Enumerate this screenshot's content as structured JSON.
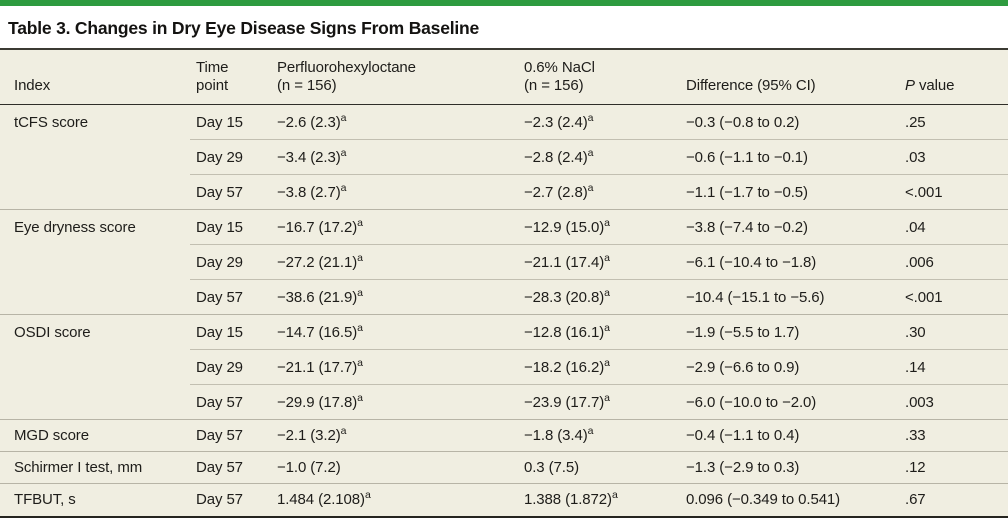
{
  "accent_color": "#2e9b3f",
  "background_beige": "#f0eee1",
  "title": "Table 3. Changes in Dry Eye Disease Signs From Baseline",
  "columns": {
    "index": "Index",
    "time_l1": "Time",
    "time_l2": "point",
    "pfh_l1": "Perfluorohexyloctane",
    "pfh_l2": "(n = 156)",
    "nacl_l1": "0.6% NaCl",
    "nacl_l2": "(n = 156)",
    "diff": "Difference (95% CI)",
    "p_italic": "P",
    "p_rest": " value"
  },
  "rows": [
    {
      "index": "tCFS score",
      "time": "Day 15",
      "pfh": "−2.6 (2.3)",
      "pfh_sup": "a",
      "nacl": "−2.3 (2.4)",
      "nacl_sup": "a",
      "diff": "−0.3 (−0.8 to 0.2)",
      "p": ".25"
    },
    {
      "index": "",
      "time": "Day 29",
      "pfh": "−3.4 (2.3)",
      "pfh_sup": "a",
      "nacl": "−2.8 (2.4)",
      "nacl_sup": "a",
      "diff": "−0.6 (−1.1 to −0.1)",
      "p": ".03"
    },
    {
      "index": "",
      "time": "Day 57",
      "pfh": "−3.8 (2.7)",
      "pfh_sup": "a",
      "nacl": "−2.7 (2.8)",
      "nacl_sup": "a",
      "diff": "−1.1 (−1.7 to −0.5)",
      "p": "<.001"
    },
    {
      "index": "Eye dryness score",
      "time": "Day 15",
      "pfh": "−16.7 (17.2)",
      "pfh_sup": "a",
      "nacl": "−12.9 (15.0)",
      "nacl_sup": "a",
      "diff": "−3.8 (−7.4 to −0.2)",
      "p": ".04"
    },
    {
      "index": "",
      "time": "Day 29",
      "pfh": "−27.2 (21.1)",
      "pfh_sup": "a",
      "nacl": "−21.1 (17.4)",
      "nacl_sup": "a",
      "diff": "−6.1 (−10.4 to −1.8)",
      "p": ".006"
    },
    {
      "index": "",
      "time": "Day 57",
      "pfh": "−38.6 (21.9)",
      "pfh_sup": "a",
      "nacl": "−28.3 (20.8)",
      "nacl_sup": "a",
      "diff": "−10.4 (−15.1 to −5.6)",
      "p": "<.001"
    },
    {
      "index": "OSDI score",
      "time": "Day 15",
      "pfh": "−14.7 (16.5)",
      "pfh_sup": "a",
      "nacl": "−12.8 (16.1)",
      "nacl_sup": "a",
      "diff": "−1.9 (−5.5 to 1.7)",
      "p": ".30"
    },
    {
      "index": "",
      "time": "Day 29",
      "pfh": "−21.1 (17.7)",
      "pfh_sup": "a",
      "nacl": "−18.2 (16.2)",
      "nacl_sup": "a",
      "diff": "−2.9 (−6.6 to 0.9)",
      "p": ".14"
    },
    {
      "index": "",
      "time": "Day 57",
      "pfh": "−29.9 (17.8)",
      "pfh_sup": "a",
      "nacl": "−23.9 (17.7)",
      "nacl_sup": "a",
      "diff": "−6.0 (−10.0 to −2.0)",
      "p": ".003"
    },
    {
      "index": "MGD score",
      "time": "Day 57",
      "pfh": "−2.1 (3.2)",
      "pfh_sup": "a",
      "nacl": "−1.8 (3.4)",
      "nacl_sup": "a",
      "diff": "−0.4 (−1.1 to 0.4)",
      "p": ".33"
    },
    {
      "index": "Schirmer I test, mm",
      "time": "Day 57",
      "pfh": "−1.0 (7.2)",
      "pfh_sup": "",
      "nacl": "0.3 (7.5)",
      "nacl_sup": "",
      "diff": "−1.3 (−2.9 to 0.3)",
      "p": ".12"
    },
    {
      "index": "TFBUT, s",
      "time": "Day 57",
      "pfh": "1.484 (2.108)",
      "pfh_sup": "a",
      "nacl": "1.388 (1.872)",
      "nacl_sup": "a",
      "diff": "0.096 (−0.349 to 0.541)",
      "p": ".67"
    }
  ]
}
